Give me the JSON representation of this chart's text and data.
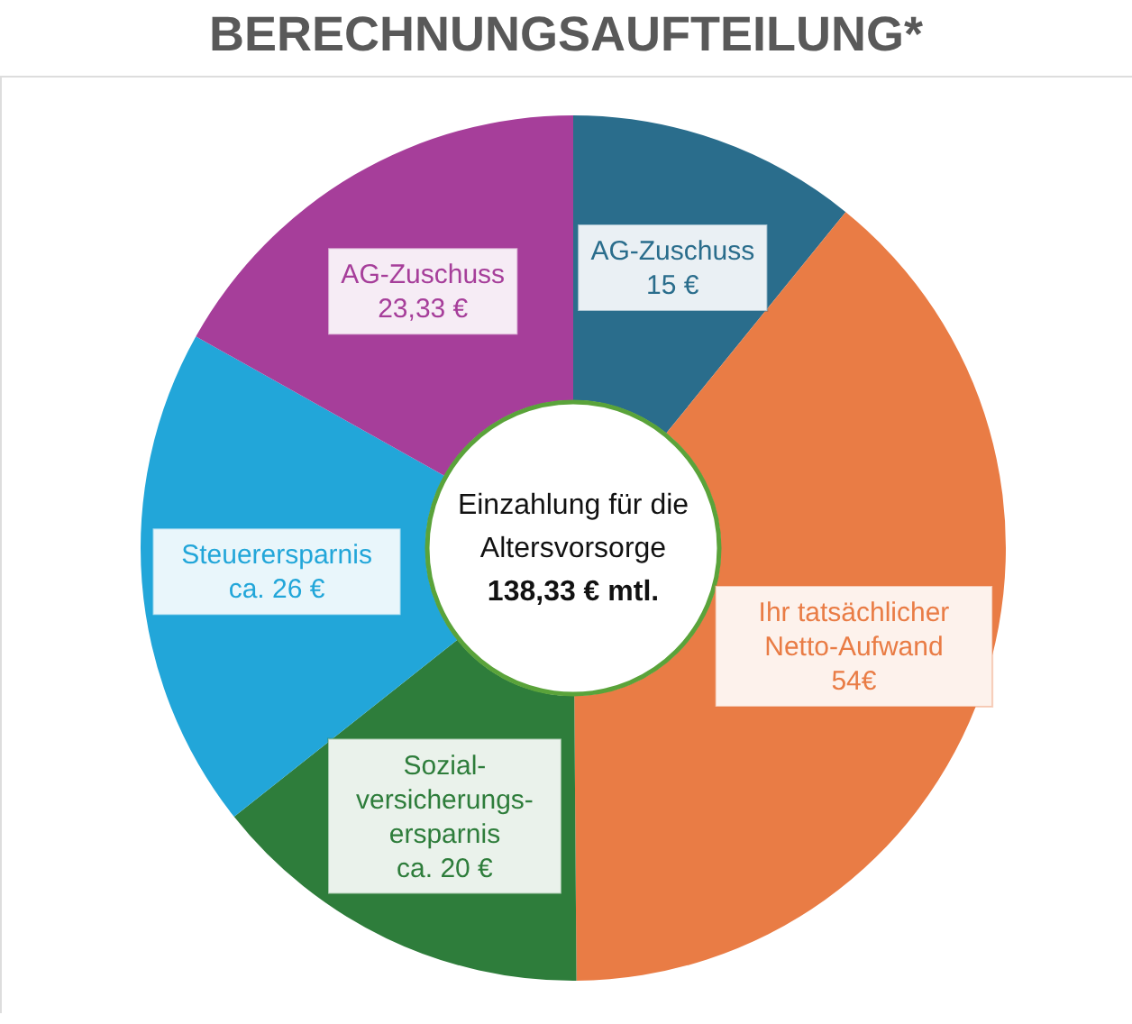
{
  "chart_data": {
    "type": "donut",
    "title": "BERECHNUNGSAUFTEILUNG*",
    "categories": [
      "AG-Zuschuss",
      "Ihr tatsächlicher\nNetto-Aufwand",
      "Sozial-\nversicherungs-\nersparnis",
      "Steuerersparnis",
      "AG-Zuschuss"
    ],
    "values": [
      15,
      54,
      20,
      26,
      23.33
    ],
    "value_labels": [
      "15 €",
      "54€",
      "ca. 20 €",
      "ca. 26 €",
      "23,33 €"
    ],
    "colors": [
      "#2a6d8c",
      "#e97c45",
      "#2e7d3b",
      "#22a6d9",
      "#a63e9a"
    ],
    "annotations": [
      "Einzahlung für die\nAltersvorsorge",
      "138,33 € mtl."
    ]
  }
}
